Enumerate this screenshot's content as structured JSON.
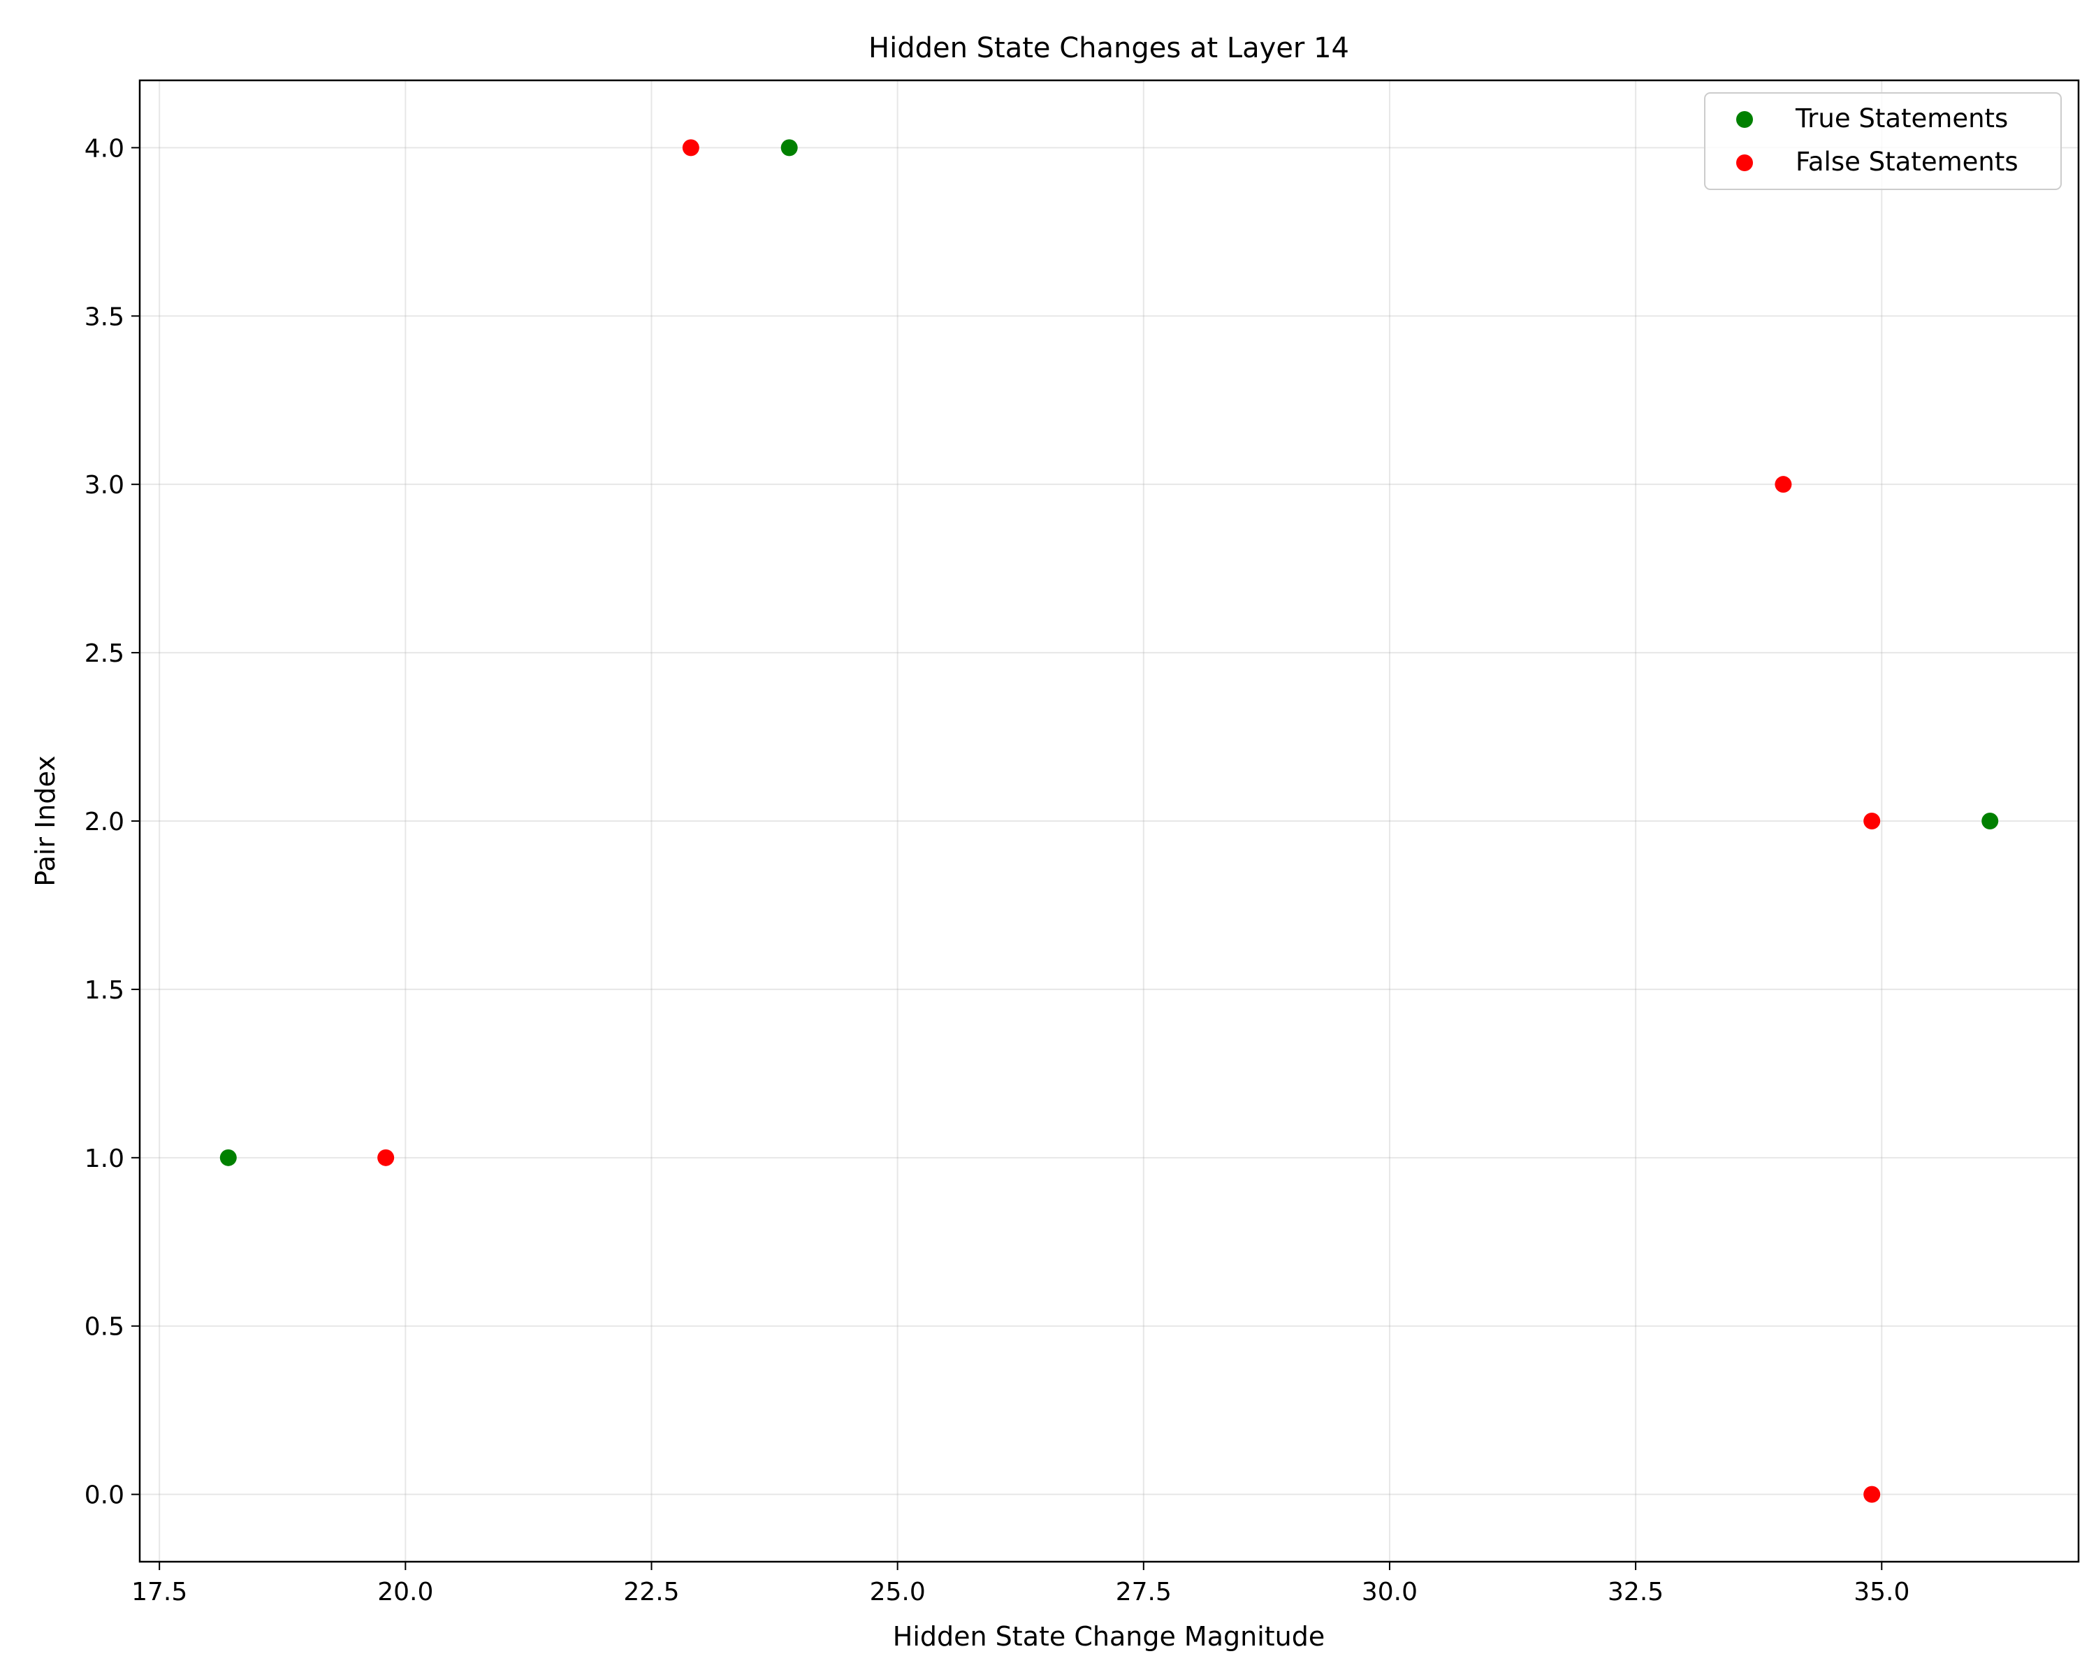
{
  "chart_data": {
    "type": "scatter",
    "title": "Hidden State Changes at Layer 14",
    "xlabel": "Hidden State Change Magnitude",
    "ylabel": "Pair Index",
    "xlim": [
      17.3,
      37.0
    ],
    "ylim": [
      -0.2,
      4.2
    ],
    "xticks": [
      17.5,
      20.0,
      22.5,
      25.0,
      27.5,
      30.0,
      32.5,
      35.0
    ],
    "xtick_labels": [
      "17.5",
      "20.0",
      "22.5",
      "25.0",
      "27.5",
      "30.0",
      "32.5",
      "35.0"
    ],
    "yticks": [
      0.0,
      0.5,
      1.0,
      1.5,
      2.0,
      2.5,
      3.0,
      3.5,
      4.0
    ],
    "ytick_labels": [
      "0.0",
      "0.5",
      "1.0",
      "1.5",
      "2.0",
      "2.5",
      "3.0",
      "3.5",
      "4.0"
    ],
    "grid": true,
    "legend_position": "top-right",
    "series": [
      {
        "name": "True Statements",
        "color": "#008000",
        "points": [
          {
            "x": 18.2,
            "y": 1.0
          },
          {
            "x": 23.9,
            "y": 4.0
          },
          {
            "x": 36.1,
            "y": 2.0
          }
        ]
      },
      {
        "name": "False Statements",
        "color": "#ff0000",
        "points": [
          {
            "x": 19.8,
            "y": 1.0
          },
          {
            "x": 22.9,
            "y": 4.0
          },
          {
            "x": 34.0,
            "y": 3.0
          },
          {
            "x": 34.9,
            "y": 2.0
          },
          {
            "x": 34.9,
            "y": 0.0
          }
        ]
      }
    ]
  }
}
